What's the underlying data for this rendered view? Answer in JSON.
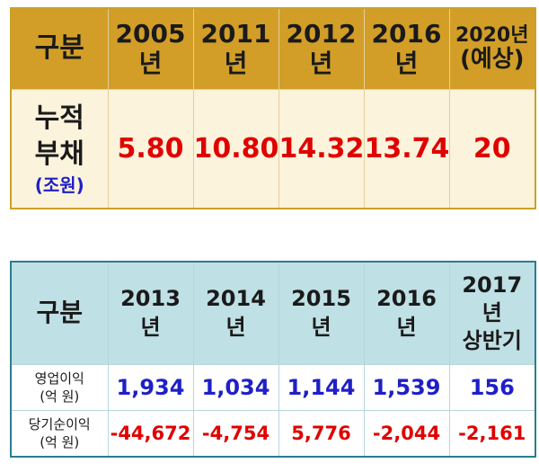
{
  "debt_table": {
    "header_label": "구분",
    "years": [
      {
        "line1": "2005",
        "line2": "년"
      },
      {
        "line1": "2011",
        "line2": "년"
      },
      {
        "line1": "2012",
        "line2": "년"
      },
      {
        "line1": "2016",
        "line2": "년"
      },
      {
        "line1": "2020년",
        "line2": "(예상)"
      }
    ],
    "row_label_line1": "누적",
    "row_label_line2": "부채",
    "row_unit": "(조원)",
    "values": [
      "5.80",
      "10.80",
      "14.32",
      "13.74",
      "20"
    ],
    "colors": {
      "header_bg": "#d29e28",
      "body_bg": "#fcf3dc",
      "value": "#e00000",
      "unit": "#1f1fc8"
    }
  },
  "profit_table": {
    "header_label": "구분",
    "years": [
      {
        "line1": "2013",
        "line2": "년",
        "line3": ""
      },
      {
        "line1": "2014",
        "line2": "년",
        "line3": ""
      },
      {
        "line1": "2015",
        "line2": "년",
        "line3": ""
      },
      {
        "line1": "2016",
        "line2": "년",
        "line3": ""
      },
      {
        "line1": "2017",
        "line2": "년",
        "line3": "상반기"
      }
    ],
    "rows": [
      {
        "label_line1": "영업이익",
        "label_line2": "(억 원)",
        "values": [
          "1,934",
          "1,034",
          "1,144",
          "1,539",
          "156"
        ]
      },
      {
        "label_line1": "당기순이익",
        "label_line2": "(억 원)",
        "values": [
          "-44,672",
          "-4,754",
          "5,776",
          "-2,044",
          "-2,161"
        ]
      }
    ],
    "colors": {
      "header_bg": "#bfe0e5",
      "border": "#2b7d8f",
      "operating": "#1f1fc8",
      "net": "#e00000"
    }
  }
}
